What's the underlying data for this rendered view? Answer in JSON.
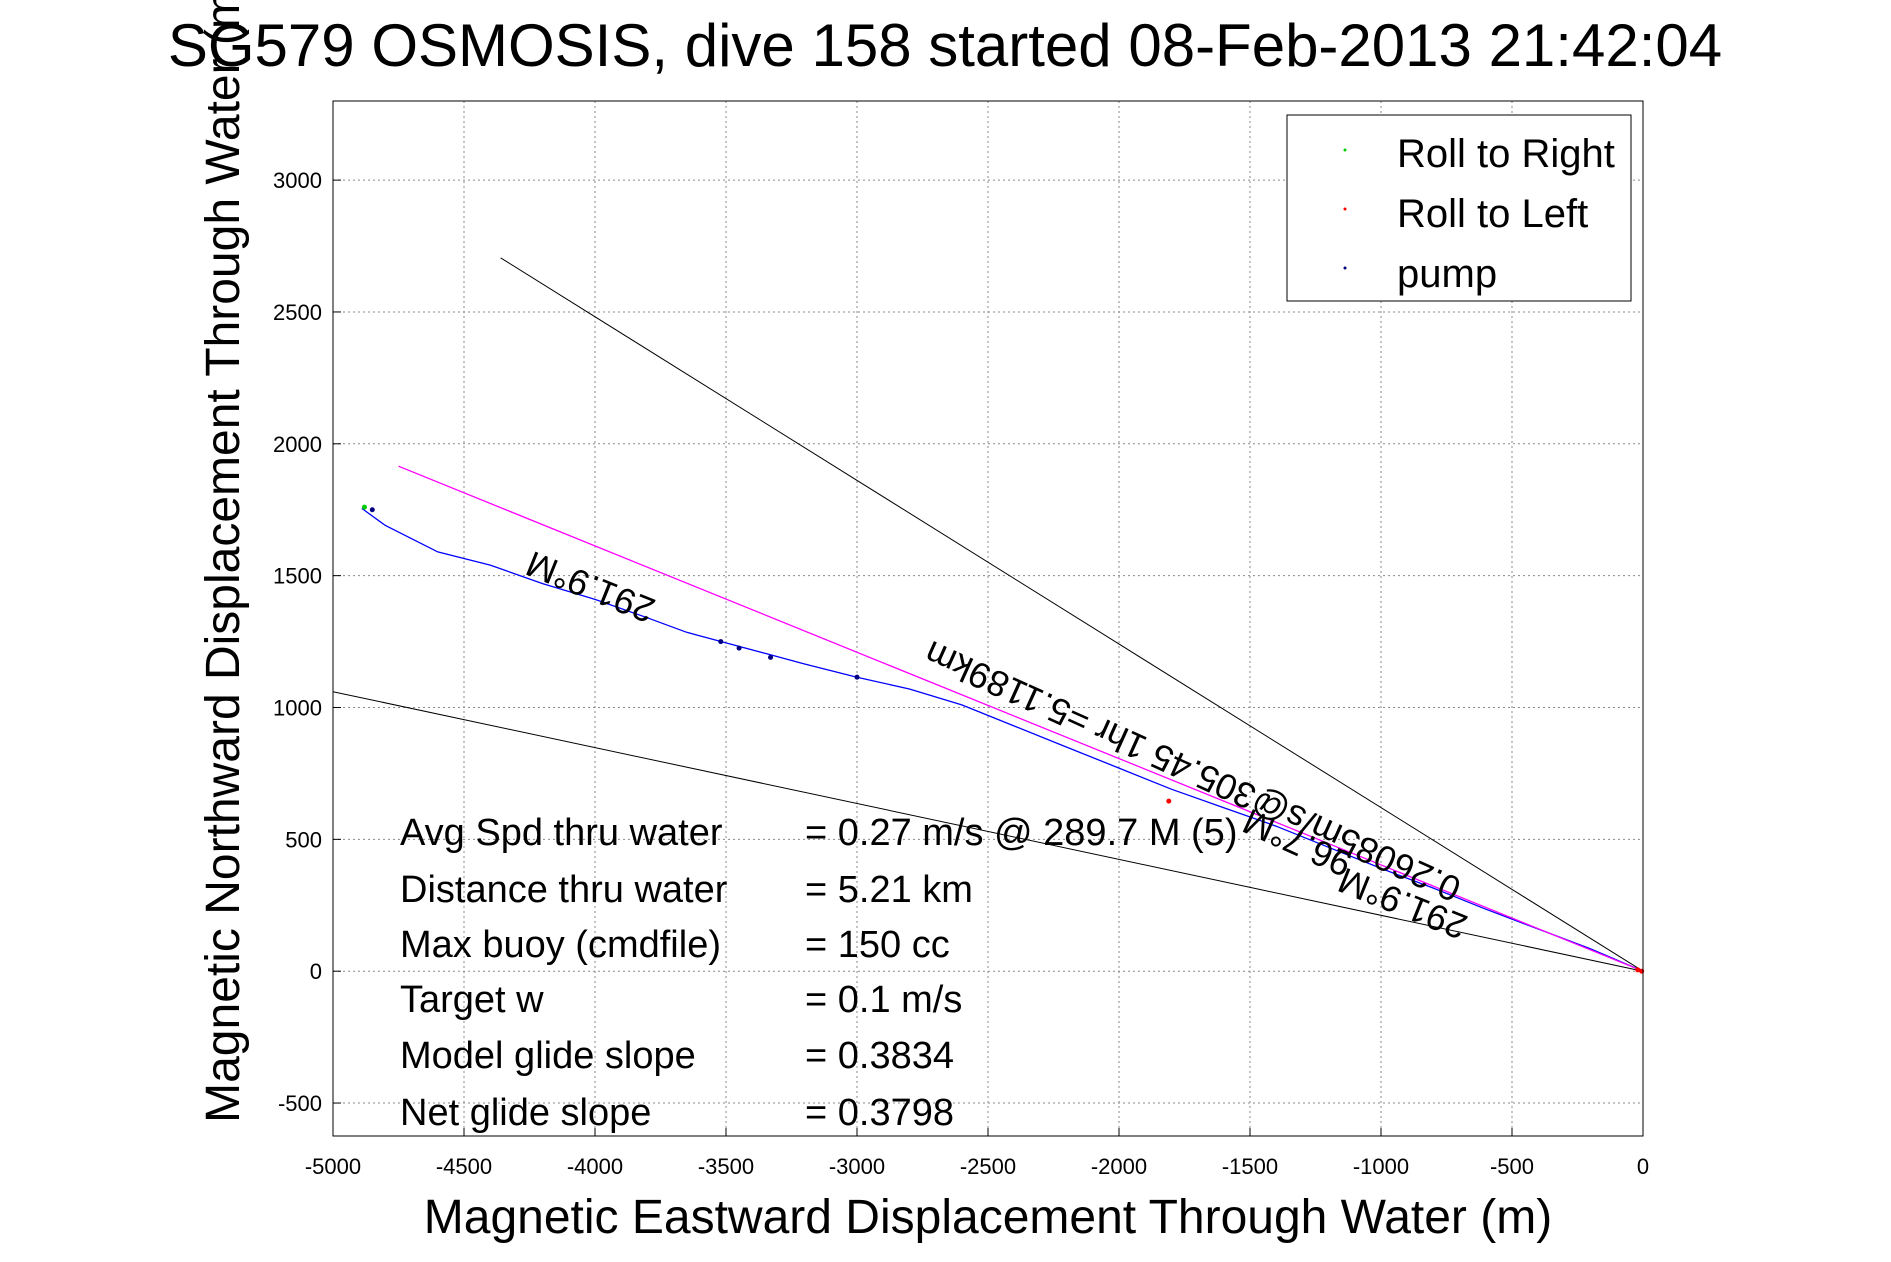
{
  "chart_data": {
    "type": "line",
    "title": "SG579 OSMOSIS, dive 158 started 08-Feb-2013 21:42:04",
    "xlabel": "Magnetic Eastward Displacement Through Water (m)",
    "ylabel": "Magnetic Northward Displacement Through Water (m)",
    "xlim": [
      -5000,
      0
    ],
    "ylim": [
      -625,
      3300
    ],
    "x_ticks": [
      -5000,
      -4500,
      -4000,
      -3500,
      -3000,
      -2500,
      -2000,
      -1500,
      -1000,
      -500,
      0
    ],
    "y_ticks": [
      -500,
      0,
      500,
      1000,
      1500,
      2000,
      2500,
      3000
    ],
    "grid": true,
    "legend_position": "top-right",
    "legend": [
      {
        "label": "Roll to Right",
        "color": "#00cc00"
      },
      {
        "label": "Roll to Left",
        "color": "#ff0000"
      },
      {
        "label": "pump",
        "color": "#000080"
      }
    ],
    "series": [
      {
        "kind": "track",
        "color": "#0000ff",
        "x": [
          0,
          -200,
          -400,
          -600,
          -800,
          -1000,
          -1200,
          -1400,
          -1600,
          -1800,
          -2000,
          -2200,
          -2400,
          -2600,
          -2800,
          -3000,
          -3200,
          -3350,
          -3500,
          -3650,
          -3800,
          -4000,
          -4200,
          -4400,
          -4600,
          -4800,
          -4890
        ],
        "y": [
          0,
          85,
          160,
          235,
          315,
          390,
          470,
          550,
          620,
          690,
          770,
          850,
          930,
          1010,
          1070,
          1115,
          1165,
          1205,
          1245,
          1285,
          1340,
          1410,
          1470,
          1540,
          1590,
          1690,
          1755
        ]
      },
      {
        "kind": "heading_line",
        "color": "#ff00ff",
        "x": [
          0,
          -4750
        ],
        "y": [
          0,
          1915
        ]
      },
      {
        "kind": "reference_line",
        "color": "#000000",
        "x": [
          0,
          -4360
        ],
        "y": [
          0,
          2705
        ]
      },
      {
        "kind": "reference_line",
        "color": "#000000",
        "x": [
          0,
          -5000
        ],
        "y": [
          0,
          1060
        ]
      }
    ],
    "markers": {
      "pump": {
        "color": "#000080",
        "x": [
          -3330,
          -3450,
          -3520,
          -3000,
          -4850
        ],
        "y": [
          1190,
          1225,
          1250,
          1115,
          1750
        ]
      },
      "roll_right": {
        "color": "#00cc00",
        "x": [
          -4880
        ],
        "y": [
          1760
        ]
      },
      "roll_left": {
        "color": "#ff0000",
        "x": [
          -5,
          -20,
          -1810
        ],
        "y": [
          0,
          5,
          645
        ]
      }
    },
    "annotations": {
      "rotated": [
        {
          "text": "291.9°M",
          "x": -4000,
          "y": 1500,
          "angle": 201.9
        },
        {
          "text": "0.26085m/s@305.45 1hr =5.1189km",
          "x": -1700,
          "y": 800,
          "angle": 204.3
        },
        {
          "text": "96.7°M",
          "x": -1300,
          "y": 530,
          "angle": 204.3
        },
        {
          "text": "291.9°M",
          "x": -900,
          "y": 300,
          "angle": 201.9
        }
      ],
      "stats": [
        {
          "label": "Avg Spd thru water",
          "value": "=  0.27 m/s @ 289.7  M (5)"
        },
        {
          "label": "Distance thru water",
          "value": "=  5.21 km"
        },
        {
          "label": "Max buoy (cmdfile)",
          "value": "= 150 cc"
        },
        {
          "label": "Target w",
          "value": "= 0.1 m/s"
        },
        {
          "label": "Model glide slope",
          "value": "= 0.3834"
        },
        {
          "label": "Net glide slope",
          "value": "= 0.3798"
        }
      ]
    }
  }
}
